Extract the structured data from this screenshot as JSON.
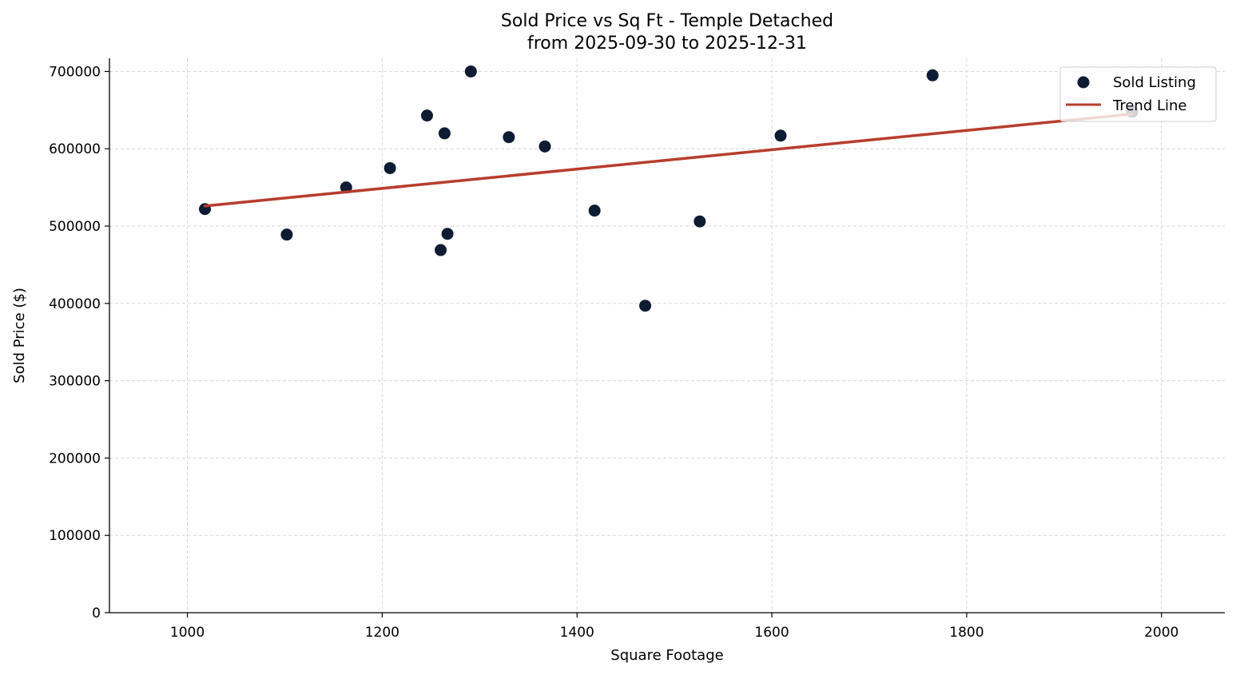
{
  "chart_data": {
    "type": "scatter",
    "title": "Sold Price vs Sq Ft - Temple Detached",
    "subtitle": "from 2025-09-30 to 2025-12-31",
    "xlabel": "Square Footage",
    "ylabel": "Sold Price ($)",
    "xlim": [
      920,
      2065
    ],
    "ylim": [
      0,
      717000
    ],
    "x_ticks": [
      "1000",
      "1200",
      "1400",
      "1600",
      "1800",
      "2000"
    ],
    "y_ticks": [
      "0",
      "100000",
      "200000",
      "300000",
      "400000",
      "500000",
      "600000",
      "700000"
    ],
    "grid": true,
    "legend_position": "top-right",
    "series": [
      {
        "name": "Sold Listing",
        "type": "scatter",
        "color": "#0d1b33",
        "points": [
          {
            "x": 1018,
            "y": 522000
          },
          {
            "x": 1102,
            "y": 489000
          },
          {
            "x": 1163,
            "y": 550000
          },
          {
            "x": 1208,
            "y": 575000
          },
          {
            "x": 1246,
            "y": 643000
          },
          {
            "x": 1260,
            "y": 469000
          },
          {
            "x": 1264,
            "y": 620000
          },
          {
            "x": 1267,
            "y": 490000
          },
          {
            "x": 1291,
            "y": 700000
          },
          {
            "x": 1330,
            "y": 615000
          },
          {
            "x": 1367,
            "y": 603000
          },
          {
            "x": 1418,
            "y": 520000
          },
          {
            "x": 1470,
            "y": 397000
          },
          {
            "x": 1526,
            "y": 506000
          },
          {
            "x": 1609,
            "y": 617000
          },
          {
            "x": 1765,
            "y": 695000
          },
          {
            "x": 1970,
            "y": 648000
          }
        ]
      },
      {
        "name": "Trend Line",
        "type": "line",
        "color": "#b83c2c",
        "points": [
          {
            "x": 1018,
            "y": 526000
          },
          {
            "x": 1970,
            "y": 645000
          }
        ]
      }
    ]
  }
}
